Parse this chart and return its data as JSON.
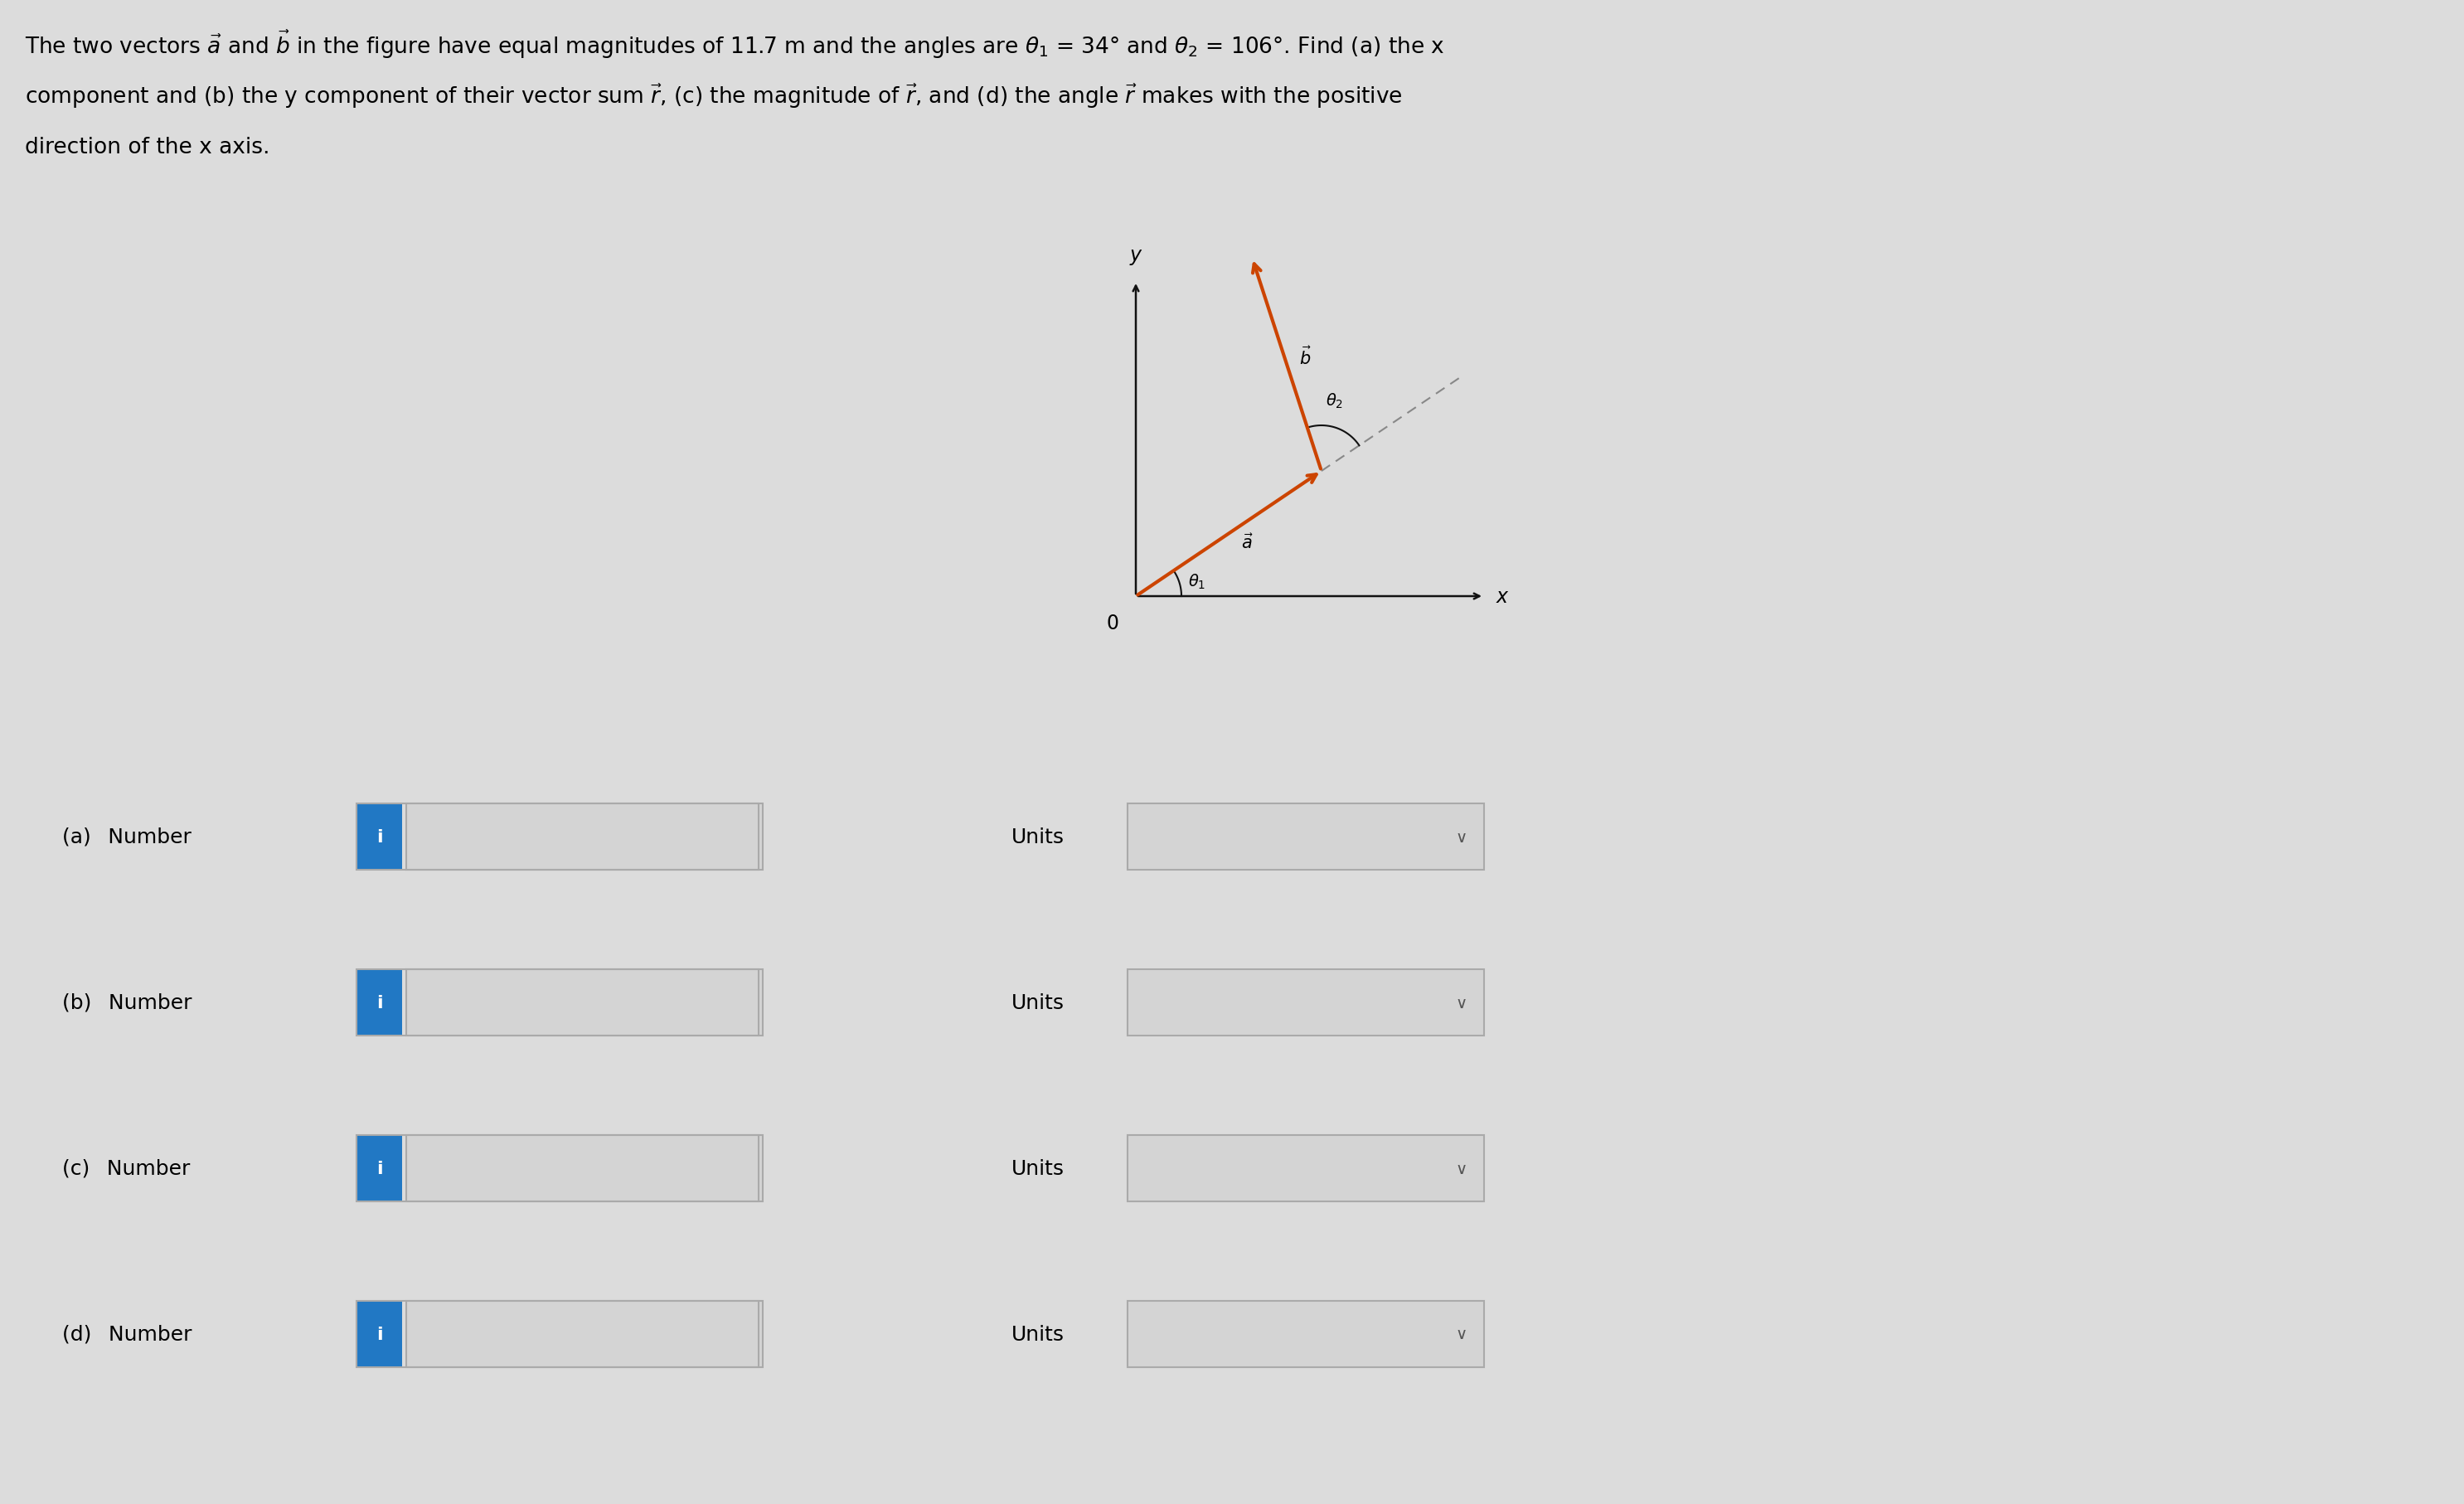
{
  "bg_color": "#dcdcdc",
  "title_line1": "The two vectors $\\vec{a}$ and $\\vec{b}$ in the figure have equal magnitudes of 11.7 m and the angles are $\\theta_1$ = 34° and $\\theta_2$ = 106°. Find (a) the x",
  "title_line2": "component and (b) the y component of their vector sum $\\vec{r}$, (c) the magnitude of $\\vec{r}$, and (d) the angle $\\vec{r}$ makes with the positive",
  "title_line3": "direction of the x axis.",
  "title_fontsize": 19,
  "arrow_color": "#cc4400",
  "axis_color": "#111111",
  "dashed_color": "#888888",
  "theta1_deg": 34,
  "theta2_deg": 106,
  "icon_color": "#2178c4",
  "icon_color_border": "#1a5fa0",
  "box_fill": "#d4d4d4",
  "box_edge": "#aaaaaa",
  "units_text": "Units",
  "chevron": "∨",
  "row_labels": [
    "(a)  Number",
    "(b)  Number",
    "(c)  Number",
    "(d)  Number"
  ],
  "label_fontsize": 18,
  "units_fontsize": 18
}
